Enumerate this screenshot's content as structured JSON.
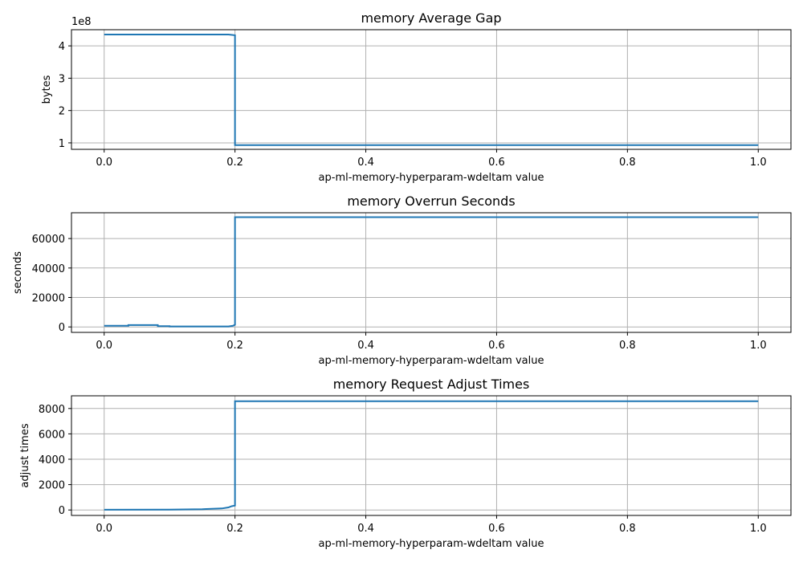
{
  "colors": {
    "series": "#1f77b4",
    "grid": "#b0b0b0"
  },
  "chart_data": [
    {
      "type": "line",
      "title": "memory Average Gap",
      "xlabel": "ap-ml-memory-hyperparam-wdeltam value",
      "ylabel": "bytes",
      "offset_text": "1e8",
      "grid": true,
      "xlim": [
        -0.05,
        1.05
      ],
      "ylim": [
        0.8,
        4.5
      ],
      "xticks": [
        0.0,
        0.2,
        0.4,
        0.6,
        0.8,
        1.0
      ],
      "xtick_labels": [
        "0.0",
        "0.2",
        "0.4",
        "0.6",
        "0.8",
        "1.0"
      ],
      "yticks": [
        1,
        2,
        3,
        4
      ],
      "ytick_labels": [
        "1",
        "2",
        "3",
        "4"
      ],
      "series": [
        {
          "x": [
            0.0,
            0.19,
            0.2,
            0.2,
            0.4,
            0.6,
            0.8,
            1.0
          ],
          "y": [
            4.35,
            4.35,
            4.33,
            0.93,
            0.93,
            0.93,
            0.93,
            0.93
          ]
        }
      ]
    },
    {
      "type": "line",
      "title": "memory Overrun Seconds",
      "xlabel": "ap-ml-memory-hyperparam-wdeltam value",
      "ylabel": "seconds",
      "grid": true,
      "xlim": [
        -0.05,
        1.05
      ],
      "ylim": [
        -3700,
        77500
      ],
      "xticks": [
        0.0,
        0.2,
        0.4,
        0.6,
        0.8,
        1.0
      ],
      "xtick_labels": [
        "0.0",
        "0.2",
        "0.4",
        "0.6",
        "0.8",
        "1.0"
      ],
      "yticks": [
        0,
        20000,
        40000,
        60000
      ],
      "ytick_labels": [
        "0",
        "20000",
        "40000",
        "60000"
      ],
      "series": [
        {
          "x": [
            0.0,
            0.037,
            0.037,
            0.082,
            0.082,
            0.1,
            0.1,
            0.19,
            0.197,
            0.2,
            0.2,
            0.4,
            0.6,
            0.8,
            1.0
          ],
          "y": [
            800,
            800,
            1300,
            1300,
            500,
            500,
            300,
            300,
            800,
            1500,
            74500,
            74500,
            74500,
            74500,
            74500
          ]
        }
      ]
    },
    {
      "type": "line",
      "title": "memory Request Adjust Times",
      "xlabel": "ap-ml-memory-hyperparam-wdeltam value",
      "ylabel": "adjust times",
      "grid": true,
      "xlim": [
        -0.05,
        1.05
      ],
      "ylim": [
        -430,
        9000
      ],
      "xticks": [
        0.0,
        0.2,
        0.4,
        0.6,
        0.8,
        1.0
      ],
      "xtick_labels": [
        "0.0",
        "0.2",
        "0.4",
        "0.6",
        "0.8",
        "1.0"
      ],
      "yticks": [
        0,
        2000,
        4000,
        6000,
        8000
      ],
      "ytick_labels": [
        "0",
        "2000",
        "4000",
        "6000",
        "8000"
      ],
      "series": [
        {
          "x": [
            0.0,
            0.1,
            0.15,
            0.18,
            0.19,
            0.195,
            0.2,
            0.2,
            0.4,
            0.6,
            0.8,
            1.0
          ],
          "y": [
            20,
            30,
            60,
            120,
            200,
            300,
            350,
            8570,
            8570,
            8570,
            8570,
            8570
          ]
        }
      ]
    }
  ]
}
